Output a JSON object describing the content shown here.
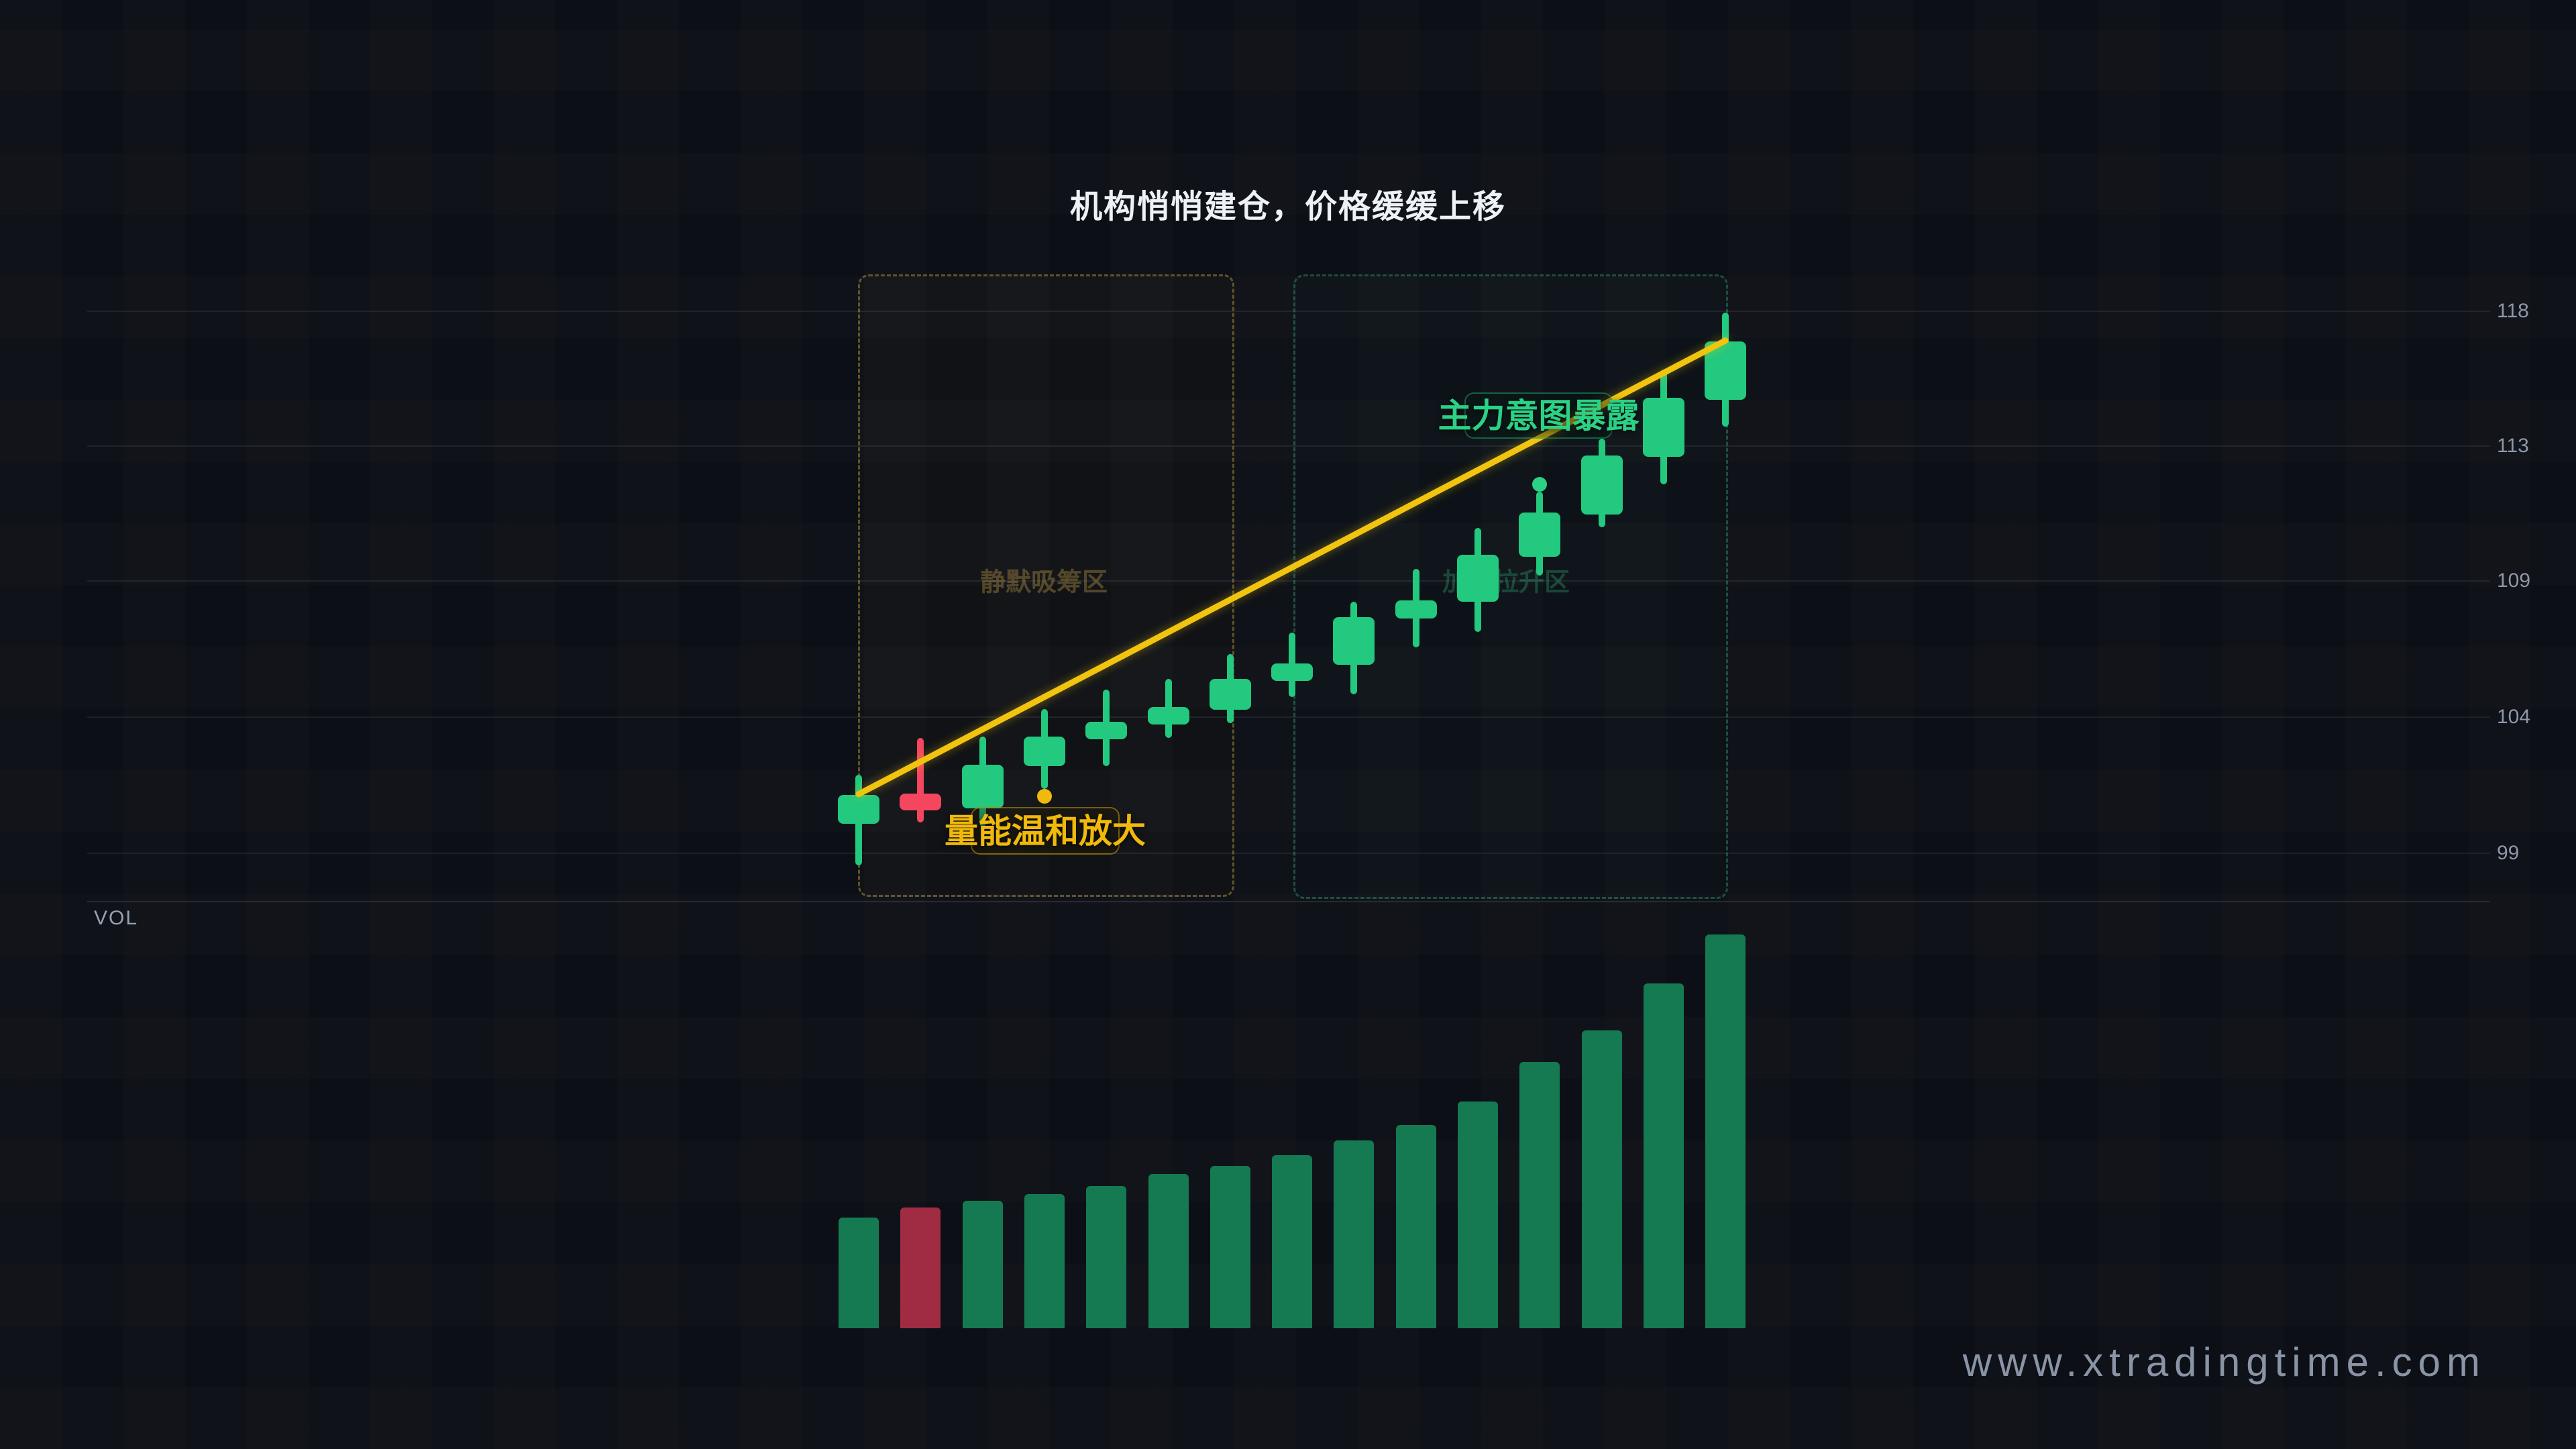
{
  "title": "机构悄悄建仓，价格缓缓上移",
  "watermark": "www.xtradingtime.com",
  "axis": {
    "vol_label": "VOL",
    "price_ticks": [
      "118",
      "113",
      "109",
      "104",
      "99"
    ]
  },
  "zones": [
    {
      "id": "accumulation",
      "label": "静默吸筹区"
    },
    {
      "id": "markup",
      "label": "加速拉升区"
    }
  ],
  "annotations": [
    {
      "id": "volume-note",
      "label": "量能温和放大",
      "color": "#f0b90b"
    },
    {
      "id": "intent-note",
      "label": "主力意图暴露",
      "color": "#2bd185"
    }
  ],
  "colors": {
    "candle_up": "#22c97e",
    "candle_down": "#f4465f",
    "volume_up": "#157a52",
    "volume_down": "#a02c44",
    "trendline": "#f1c40f",
    "marker_low": "#f0b90b",
    "marker_high": "#2bd185"
  },
  "chart_data": {
    "type": "candlestick+volume",
    "title": "机构悄悄建仓，价格缓缓上移",
    "ylabel": "price",
    "ylim": [
      99,
      118
    ],
    "grid": true,
    "price_tick_values": [
      118,
      113,
      109,
      104,
      99
    ],
    "candles": [
      {
        "open": 100.0,
        "high": 101.73,
        "low": 98.55,
        "close": 101.02,
        "volume": 165,
        "dir": "up"
      },
      {
        "open": 101.07,
        "high": 103.02,
        "low": 100.06,
        "close": 100.48,
        "volume": 180,
        "dir": "down"
      },
      {
        "open": 100.55,
        "high": 103.07,
        "low": 99.92,
        "close": 102.08,
        "volume": 190,
        "dir": "up"
      },
      {
        "open": 102.04,
        "high": 104.04,
        "low": 101.23,
        "close": 103.07,
        "volume": 200,
        "dir": "up"
      },
      {
        "open": 102.98,
        "high": 104.72,
        "low": 102.04,
        "close": 103.59,
        "volume": 212,
        "dir": "up"
      },
      {
        "open": 103.5,
        "high": 105.1,
        "low": 103.03,
        "close": 104.11,
        "volume": 230,
        "dir": "up"
      },
      {
        "open": 104.02,
        "high": 105.97,
        "low": 103.54,
        "close": 105.1,
        "volume": 242,
        "dir": "up"
      },
      {
        "open": 105.01,
        "high": 106.72,
        "low": 104.46,
        "close": 105.64,
        "volume": 258,
        "dir": "up"
      },
      {
        "open": 105.59,
        "high": 107.79,
        "low": 104.55,
        "close": 107.25,
        "volume": 280,
        "dir": "up"
      },
      {
        "open": 107.2,
        "high": 108.94,
        "low": 106.19,
        "close": 107.84,
        "volume": 303,
        "dir": "up"
      },
      {
        "open": 107.79,
        "high": 110.37,
        "low": 106.74,
        "close": 109.45,
        "volume": 338,
        "dir": "up"
      },
      {
        "open": 109.36,
        "high": 111.64,
        "low": 108.7,
        "close": 110.93,
        "volume": 397,
        "dir": "up"
      },
      {
        "open": 110.86,
        "high": 113.52,
        "low": 110.41,
        "close": 112.93,
        "volume": 444,
        "dir": "up"
      },
      {
        "open": 112.88,
        "high": 115.94,
        "low": 111.92,
        "close": 114.95,
        "volume": 514,
        "dir": "up"
      },
      {
        "open": 114.88,
        "high": 117.92,
        "low": 113.94,
        "close": 116.93,
        "volume": 587,
        "dir": "up"
      }
    ],
    "markers": [
      {
        "candle_index": 3,
        "at": "low",
        "color": "#f0b90b"
      },
      {
        "candle_index": 11,
        "at": "high",
        "color": "#2bd185"
      }
    ],
    "trendline": {
      "from": {
        "candle_index": 0,
        "price": 101.05
      },
      "to": {
        "candle_index": 14,
        "price": 116.95
      },
      "color": "#f1c40f"
    }
  }
}
